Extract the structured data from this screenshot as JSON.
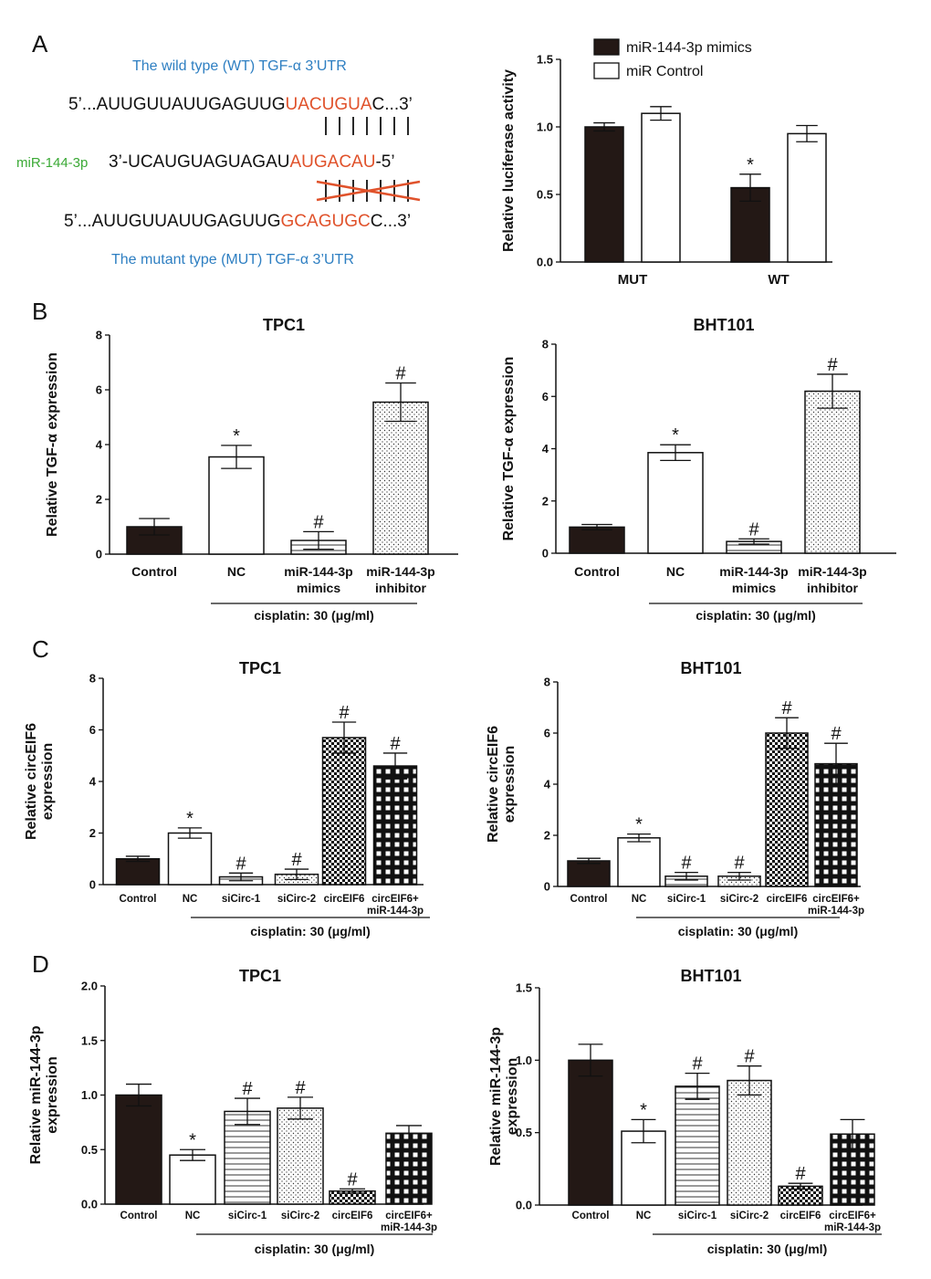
{
  "panel_letters": {
    "a": "A",
    "b": "B",
    "c": "C",
    "d": "D"
  },
  "panel_a": {
    "wt_title": "The wild type (WT) TGF-α 3’UTR",
    "wt_seq_prefix": "5’...AUUGUUAUUGAGUUG",
    "wt_seq_site": "UACUGUA",
    "wt_seq_suffix": "C...3’",
    "mir_label": "miR-144-3p",
    "mir_seq_prefix": "3’-UCAUGUAGUAGAU",
    "mir_seq_site": "AUGACAU",
    "mir_seq_suffix": "-5’",
    "mut_seq_prefix": "5’...AUUGUUAUUGAGUUG",
    "mut_seq_site": "GCAGUGC",
    "mut_seq_suffix": "C...3’",
    "mut_title": "The mutant type (MUT) TGF-α 3’UTR",
    "colors": {
      "site": "#e0522b",
      "title": "#2e7fc2",
      "mir_label": "#3aa935",
      "cross": "#e0522b"
    }
  },
  "chart_data": [
    {
      "id": "luc",
      "type": "bar",
      "title": "",
      "ylabel": "Relative luciferase activity",
      "ylim": [
        0,
        1.5
      ],
      "yticks": [
        "0.0",
        "0.5",
        "1.0",
        "1.5"
      ],
      "categories": [
        "MUT",
        "WT"
      ],
      "series": [
        {
          "name": "miR-144-3p mimics",
          "values": [
            1.0,
            0.55
          ],
          "errors": [
            0.03,
            0.1
          ],
          "fill": "black",
          "marks": [
            "",
            "*"
          ]
        },
        {
          "name": "miR Control",
          "values": [
            1.1,
            0.95
          ],
          "errors": [
            0.05,
            0.06
          ],
          "fill": "white",
          "marks": [
            "",
            ""
          ]
        }
      ],
      "legend": "top-right"
    },
    {
      "id": "b1",
      "type": "bar",
      "title": "TPC1",
      "ylabel": "Relative TGF-α expression",
      "ylim": [
        0,
        8
      ],
      "yticks": [
        "0",
        "2",
        "4",
        "6",
        "8"
      ],
      "categories": [
        "Control",
        "NC",
        "miR-144-3p mimics",
        "miR-144-3p inhibitor"
      ],
      "values": [
        1.0,
        3.55,
        0.5,
        5.55
      ],
      "errors": [
        0.3,
        0.42,
        0.32,
        0.7
      ],
      "fills": [
        "black",
        "white",
        "hline",
        "dots"
      ],
      "marks": [
        "",
        "*",
        "#",
        "#"
      ],
      "bracket_label": "cisplatin: 30 (μg/ml)"
    },
    {
      "id": "b2",
      "type": "bar",
      "title": "BHT101",
      "ylabel": "Relative TGF-α expression",
      "ylim": [
        0,
        8
      ],
      "yticks": [
        "0",
        "2",
        "4",
        "6",
        "8"
      ],
      "categories": [
        "Control",
        "NC",
        "miR-144-3p mimics",
        "miR-144-3p inhibitor"
      ],
      "values": [
        1.0,
        3.85,
        0.45,
        6.2
      ],
      "errors": [
        0.1,
        0.3,
        0.1,
        0.65
      ],
      "fills": [
        "black",
        "white",
        "hline",
        "dots"
      ],
      "marks": [
        "",
        "*",
        "#",
        "#"
      ],
      "bracket_label": "cisplatin: 30 (μg/ml)"
    },
    {
      "id": "c1",
      "type": "bar",
      "title": "TPC1",
      "ylabel": "Relative circEIF6 expression",
      "ylim": [
        0,
        8
      ],
      "yticks": [
        "0",
        "2",
        "4",
        "6",
        "8"
      ],
      "categories": [
        "Control",
        "NC",
        "siCirc-1",
        "siCirc-2",
        "circEIF6",
        "circEIF6+ miR-144-3p"
      ],
      "values": [
        1.0,
        2.0,
        0.3,
        0.4,
        5.7,
        4.6
      ],
      "errors": [
        0.1,
        0.2,
        0.15,
        0.2,
        0.6,
        0.5
      ],
      "fills": [
        "black",
        "white",
        "hline",
        "dots",
        "checker",
        "grid"
      ],
      "marks": [
        "",
        "*",
        "#",
        "#",
        "#",
        "#"
      ],
      "bracket_label": "cisplatin: 30 (μg/ml)"
    },
    {
      "id": "c2",
      "type": "bar",
      "title": "BHT101",
      "ylabel": "Relative circEIF6 expression",
      "ylim": [
        0,
        8
      ],
      "yticks": [
        "0",
        "2",
        "4",
        "6",
        "8"
      ],
      "categories": [
        "Control",
        "NC",
        "siCirc-1",
        "siCirc-2",
        "circEIF6",
        "circEIF6+ miR-144-3p"
      ],
      "values": [
        1.0,
        1.9,
        0.4,
        0.4,
        6.0,
        4.8
      ],
      "errors": [
        0.1,
        0.15,
        0.15,
        0.15,
        0.6,
        0.8
      ],
      "fills": [
        "black",
        "white",
        "hline",
        "dots",
        "checker",
        "grid"
      ],
      "marks": [
        "",
        "*",
        "#",
        "#",
        "#",
        "#"
      ],
      "bracket_label": "cisplatin: 30 (μg/ml)"
    },
    {
      "id": "d1",
      "type": "bar",
      "title": "TPC1",
      "ylabel": "Relative miR-144-3p expression",
      "ylim": [
        0,
        2.0
      ],
      "yticks": [
        "0.0",
        "0.5",
        "1.0",
        "1.5",
        "2.0"
      ],
      "categories": [
        "Control",
        "NC",
        "siCirc-1",
        "siCirc-2",
        "circEIF6",
        "circEIF6+ miR-144-3p"
      ],
      "values": [
        1.0,
        0.45,
        0.85,
        0.88,
        0.12,
        0.65
      ],
      "errors": [
        0.1,
        0.05,
        0.12,
        0.1,
        0.02,
        0.07
      ],
      "fills": [
        "black",
        "white",
        "hline",
        "dots",
        "checker",
        "grid"
      ],
      "marks": [
        "",
        "*",
        "#",
        "#",
        "#",
        ""
      ],
      "bracket_label": "cisplatin: 30 (μg/ml)"
    },
    {
      "id": "d2",
      "type": "bar",
      "title": "BHT101",
      "ylabel": "Relative miR-144-3p expression",
      "ylim": [
        0,
        1.5
      ],
      "yticks": [
        "0.0",
        "0.5",
        "1.0",
        "1.5"
      ],
      "categories": [
        "Control",
        "NC",
        "siCirc-1",
        "siCirc-2",
        "circEIF6",
        "circEIF6+ miR-144-3p"
      ],
      "values": [
        1.0,
        0.51,
        0.82,
        0.86,
        0.13,
        0.49
      ],
      "errors": [
        0.11,
        0.08,
        0.09,
        0.1,
        0.02,
        0.1
      ],
      "fills": [
        "black",
        "white",
        "hline",
        "dots",
        "checker",
        "grid"
      ],
      "marks": [
        "",
        "*",
        "#",
        "#",
        "#",
        ""
      ],
      "bracket_label": "cisplatin: 30 (μg/ml)"
    }
  ]
}
